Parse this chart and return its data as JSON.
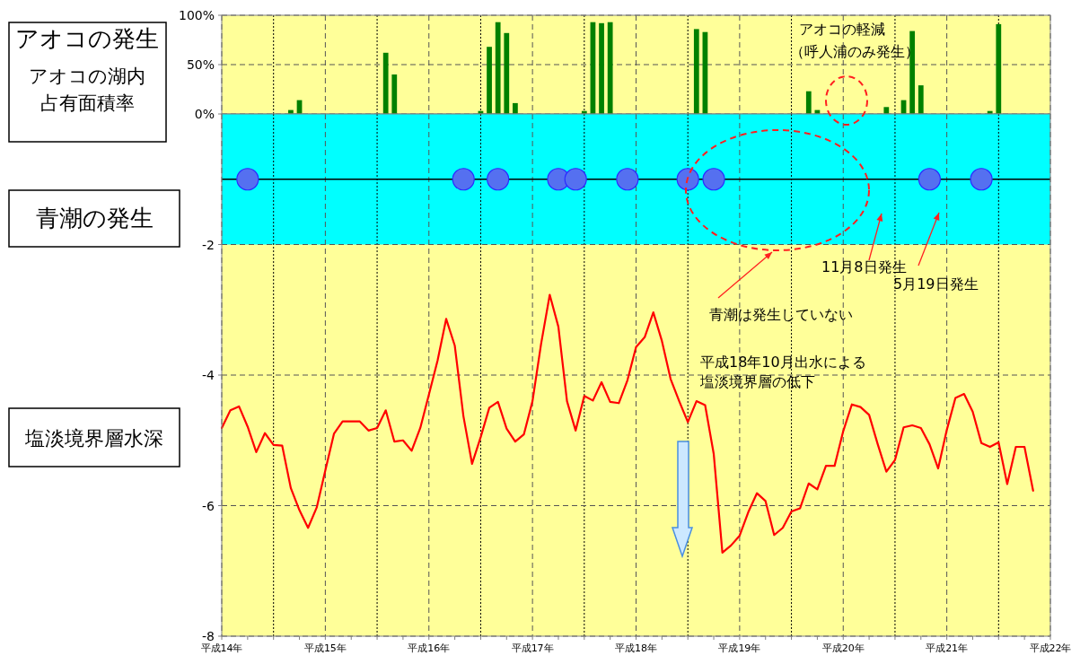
{
  "chart_data": [
    {
      "type": "bar",
      "color": "#008000",
      "categories": [
        null,
        null,
        null,
        null,
        null,
        null,
        null,
        null,
        null,
        null,
        null,
        null,
        null,
        null,
        null,
        null,
        null,
        null,
        null,
        null,
        null,
        null,
        null,
        null,
        null,
        null,
        null,
        null,
        null,
        null,
        null,
        null,
        null,
        null,
        null,
        null,
        null,
        null,
        null,
        null,
        null,
        null,
        null,
        null,
        null,
        null,
        null,
        null,
        null,
        null,
        null,
        null,
        null,
        null,
        null,
        null,
        null,
        null,
        null,
        null,
        null,
        null,
        null,
        null,
        null,
        null,
        null,
        null,
        null,
        null,
        null,
        null,
        null,
        null,
        null,
        null,
        null,
        null,
        null,
        null,
        null,
        null,
        null,
        null,
        null,
        null,
        null,
        null,
        null,
        null,
        null,
        null,
        null,
        null,
        null,
        null,
        null
      ],
      "values": [
        0,
        0,
        0,
        0,
        0,
        0,
        0,
        0,
        4,
        14,
        0,
        0,
        0,
        0,
        0,
        0,
        0,
        0,
        0,
        62,
        40,
        0,
        0,
        0,
        0,
        0,
        0,
        0,
        0,
        0,
        3,
        68,
        93,
        82,
        11,
        0,
        0,
        0,
        0,
        0,
        0,
        0,
        3,
        93,
        92,
        93,
        0,
        0,
        0,
        0,
        0,
        0,
        0,
        0,
        0,
        86,
        83,
        0,
        0,
        0,
        0,
        0,
        0,
        0,
        0,
        0,
        0,
        0,
        23,
        4,
        0,
        0,
        0,
        0,
        0,
        0,
        0,
        7,
        0,
        14,
        84,
        29,
        0,
        0,
        0,
        0,
        0,
        0,
        0,
        3,
        91,
        0,
        0,
        0,
        0,
        0,
        0
      ],
      "ylim": [
        0,
        100
      ],
      "yticks": [
        {
          "value": 0,
          "label": "0%"
        },
        {
          "value": 50,
          "label": "50%"
        },
        {
          "value": 100,
          "label": "100%"
        }
      ],
      "grid": true,
      "tick_labels": "y",
      "annotations": [
        "アオコの発生",
        "アオコの湖内",
        "占有面積率",
        "アオコの軽減",
        "（呼人浦のみ発生）"
      ]
    },
    {
      "type": "line",
      "categories": [
        "平成14年",
        null,
        null,
        null,
        null,
        null,
        null,
        null,
        null,
        null,
        null,
        null,
        "平成15年",
        null,
        null,
        null,
        null,
        null,
        null,
        null,
        null,
        null,
        null,
        null,
        "平成16年",
        null,
        null,
        null,
        null,
        null,
        null,
        null,
        null,
        null,
        null,
        null,
        "平成17年",
        null,
        null,
        null,
        null,
        null,
        null,
        null,
        null,
        null,
        null,
        null,
        "平成18年",
        null,
        null,
        null,
        null,
        null,
        null,
        null,
        null,
        null,
        null,
        null,
        "平成19年",
        null,
        null,
        null,
        null,
        null,
        null,
        null,
        null,
        null,
        null,
        null,
        "平成20年",
        null,
        null,
        null,
        null,
        null,
        null,
        null,
        null,
        null,
        null,
        null,
        "平成21年",
        null,
        null,
        null,
        null,
        null,
        null,
        null,
        null,
        null,
        null,
        null,
        "平成22年"
      ],
      "series": [
        {
          "color": "#ff0000",
          "values": [
            -4.81,
            -4.54,
            -4.48,
            -4.79,
            -5.18,
            -4.89,
            -5.07,
            -5.08,
            -5.73,
            -6.07,
            -6.34,
            -6.03,
            -5.46,
            -4.9,
            -4.71,
            -4.71,
            -4.71,
            -4.85,
            -4.81,
            -4.54,
            -5.02,
            -5.0,
            -5.16,
            -4.81,
            -4.3,
            -3.78,
            -3.14,
            -3.55,
            -4.63,
            -5.36,
            -4.95,
            -4.5,
            -4.41,
            -4.82,
            -5.02,
            -4.91,
            -4.4,
            -3.52,
            -2.77,
            -3.26,
            -4.4,
            -4.85,
            -4.32,
            -4.39,
            -4.11,
            -4.41,
            -4.43,
            -4.08,
            -3.57,
            -3.42,
            -3.04,
            -3.48,
            -4.06,
            -4.4,
            -4.72,
            -4.4,
            -4.46,
            -5.21,
            -6.72,
            -6.61,
            -6.46,
            -6.1,
            -5.81,
            -5.93,
            -6.45,
            -6.34,
            -6.09,
            -6.04,
            -5.66,
            -5.75,
            -5.39,
            -5.39,
            -4.86,
            -4.45,
            -4.49,
            -4.61,
            -5.06,
            -5.48,
            -5.3,
            -4.8,
            -4.77,
            -4.81,
            -5.06,
            -5.43,
            -4.84,
            -4.35,
            -4.29,
            -4.56,
            -5.04,
            -5.1,
            -5.03,
            -5.67,
            -5.1,
            -5.1,
            -5.77,
            null,
            null
          ]
        },
        {
          "type": "scatter",
          "color": "#5570f0",
          "marker": "circle",
          "values": [
            null,
            null,
            null,
            -1,
            null,
            null,
            null,
            null,
            null,
            null,
            null,
            null,
            null,
            null,
            null,
            null,
            null,
            null,
            null,
            null,
            null,
            null,
            null,
            null,
            null,
            null,
            null,
            null,
            -1,
            null,
            null,
            null,
            -1,
            null,
            null,
            null,
            null,
            null,
            null,
            -1,
            null,
            -1,
            null,
            null,
            null,
            null,
            null,
            -1,
            null,
            null,
            null,
            null,
            null,
            null,
            -1,
            null,
            null,
            -1,
            null,
            null,
            null,
            null,
            null,
            null,
            null,
            null,
            null,
            null,
            null,
            null,
            null,
            null,
            null,
            null,
            null,
            null,
            null,
            null,
            null,
            null,
            null,
            null,
            -1,
            null,
            null,
            null,
            null,
            null,
            -1,
            null,
            null,
            null,
            null,
            null,
            null,
            null,
            null
          ]
        }
      ],
      "ylim": [
        -8,
        0
      ],
      "yticks": [
        -2,
        -4,
        -6,
        -8
      ],
      "grid": true,
      "bands": [
        {
          "axis": "y",
          "from": 0,
          "to": -2,
          "color": "#00ffff"
        }
      ],
      "ref_lines": [
        {
          "axis": "y",
          "value": -1,
          "color": "#000000",
          "line_style": "solid"
        }
      ],
      "annotations": [
        "青潮の発生",
        "塩淡境界層水深",
        "11月8日発生",
        "5月19日発生",
        "青潮は発生していない",
        "平成18年10月出水による",
        "塩淡境界層の低下"
      ]
    }
  ]
}
